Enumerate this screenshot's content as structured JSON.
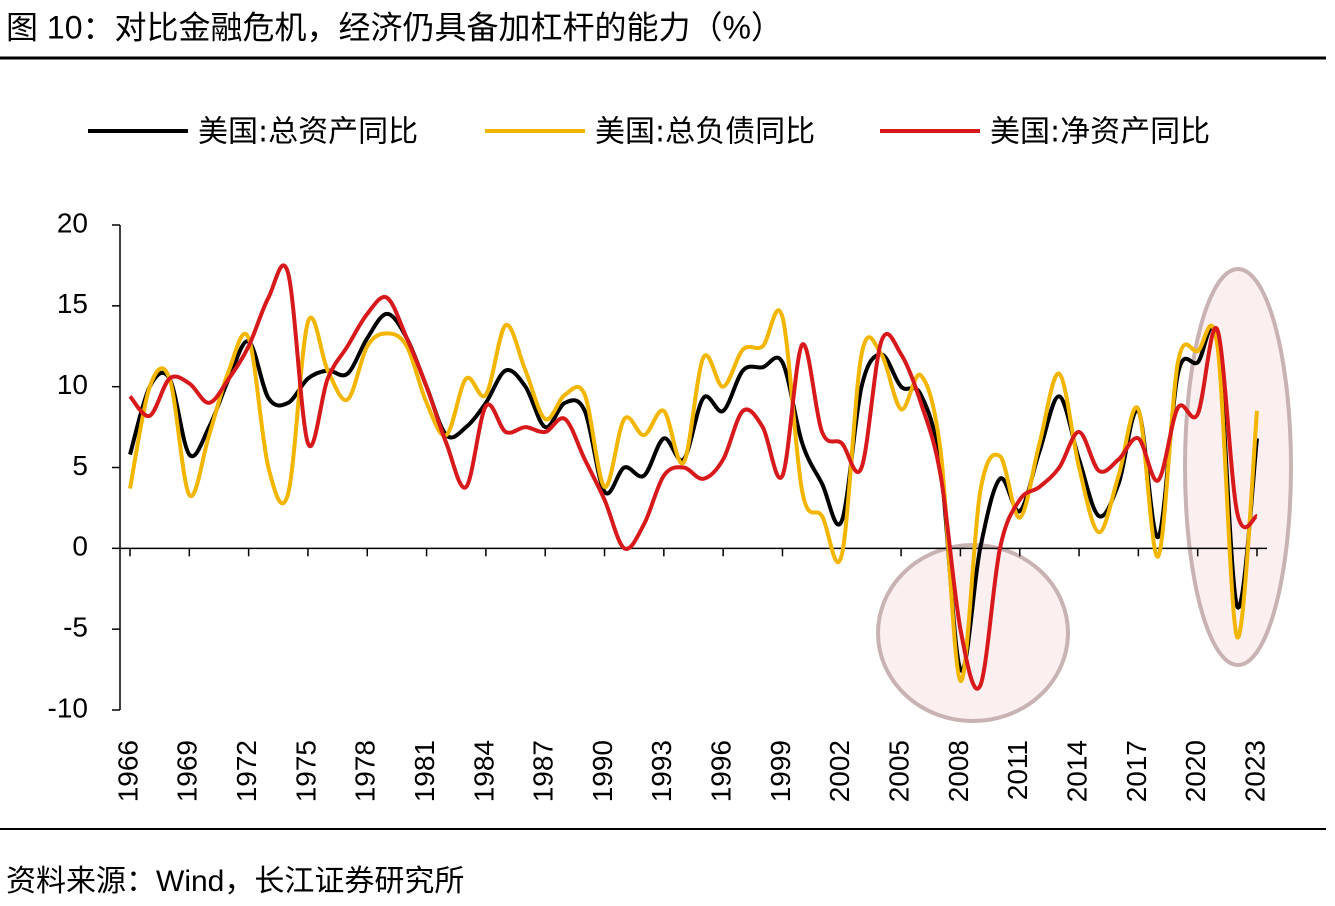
{
  "chart_data": {
    "type": "line",
    "title": "图  10：对比金融危机，经济仍具备加杠杆的能力（%）",
    "source": "资料来源：Wind，长江证券研究所",
    "x": [
      1966,
      1967,
      1968,
      1969,
      1970,
      1971,
      1972,
      1973,
      1974,
      1975,
      1976,
      1977,
      1978,
      1979,
      1980,
      1981,
      1982,
      1983,
      1984,
      1985,
      1986,
      1987,
      1988,
      1989,
      1990,
      1991,
      1992,
      1993,
      1994,
      1995,
      1996,
      1997,
      1998,
      1999,
      2000,
      2001,
      2002,
      2003,
      2004,
      2005,
      2006,
      2007,
      2008,
      2009,
      2010,
      2011,
      2012,
      2013,
      2014,
      2015,
      2016,
      2017,
      2018,
      2019,
      2020,
      2021,
      2022,
      2023
    ],
    "xlim": [
      1966,
      2023
    ],
    "xticks": [
      1966,
      1969,
      1972,
      1975,
      1978,
      1981,
      1984,
      1987,
      1990,
      1993,
      1996,
      1999,
      2002,
      2005,
      2008,
      2011,
      2014,
      2017,
      2020,
      2023
    ],
    "ylim": [
      -10,
      20
    ],
    "yticks": [
      -10,
      -5,
      0,
      5,
      10,
      15,
      20
    ],
    "legend": "top",
    "series": [
      {
        "name": "美国:总资产同比",
        "color": "#000000",
        "values": [
          5.8,
          10,
          10.5,
          5.8,
          7.5,
          10.5,
          12.8,
          9.3,
          9,
          10.5,
          11,
          10.8,
          13,
          14.5,
          13,
          10,
          7,
          7.5,
          9,
          11,
          10,
          7.5,
          9,
          8.5,
          3.5,
          5,
          4.5,
          6.8,
          5.5,
          9.3,
          8.5,
          11,
          11.2,
          11.5,
          6.5,
          4,
          1.7,
          10,
          12,
          10,
          9.5,
          5,
          -7.5,
          0,
          4.3,
          2.3,
          6,
          9.4,
          5.5,
          2,
          4,
          8.5,
          0.7,
          10.8,
          11.5,
          12.8,
          -3.6,
          6.8
        ]
      },
      {
        "name": "美国:总负债同比",
        "color": "#f2b500",
        "values": [
          3.7,
          10,
          10.5,
          3.3,
          7,
          11,
          13,
          5,
          3.4,
          14,
          11,
          9.2,
          12.5,
          13.3,
          12.5,
          9,
          7,
          10.5,
          9.5,
          13.8,
          11,
          8,
          9.5,
          9.5,
          3.8,
          8,
          7,
          8.5,
          5.3,
          11.8,
          10,
          12.3,
          12.5,
          14.3,
          3.5,
          2,
          -0.4,
          12,
          12,
          8.6,
          10.7,
          6,
          -8.2,
          3.5,
          5.7,
          1.9,
          6.5,
          10.8,
          5,
          1,
          4.5,
          8.6,
          -0.5,
          11.5,
          12.2,
          12.5,
          -5.5,
          8.5
        ]
      },
      {
        "name": "美国:净资产同比",
        "color": "#d7191c",
        "values": [
          9.4,
          8.2,
          10.5,
          10.2,
          9,
          10.5,
          12.5,
          15.5,
          17,
          6.5,
          10.5,
          12.5,
          14.5,
          15.5,
          13,
          10,
          6.5,
          3.8,
          8.8,
          7.2,
          7.5,
          7.2,
          8,
          5.5,
          3,
          0,
          1.5,
          4.5,
          5,
          4.3,
          5.5,
          8.5,
          7.5,
          4.5,
          12.6,
          7.2,
          6.5,
          5,
          12.8,
          12,
          9,
          4.5,
          -5,
          -8.5,
          0,
          3,
          3.8,
          5,
          7.2,
          4.8,
          5.5,
          6.8,
          4.2,
          8.7,
          8.3,
          13.5,
          2.2,
          2
        ]
      }
    ]
  }
}
